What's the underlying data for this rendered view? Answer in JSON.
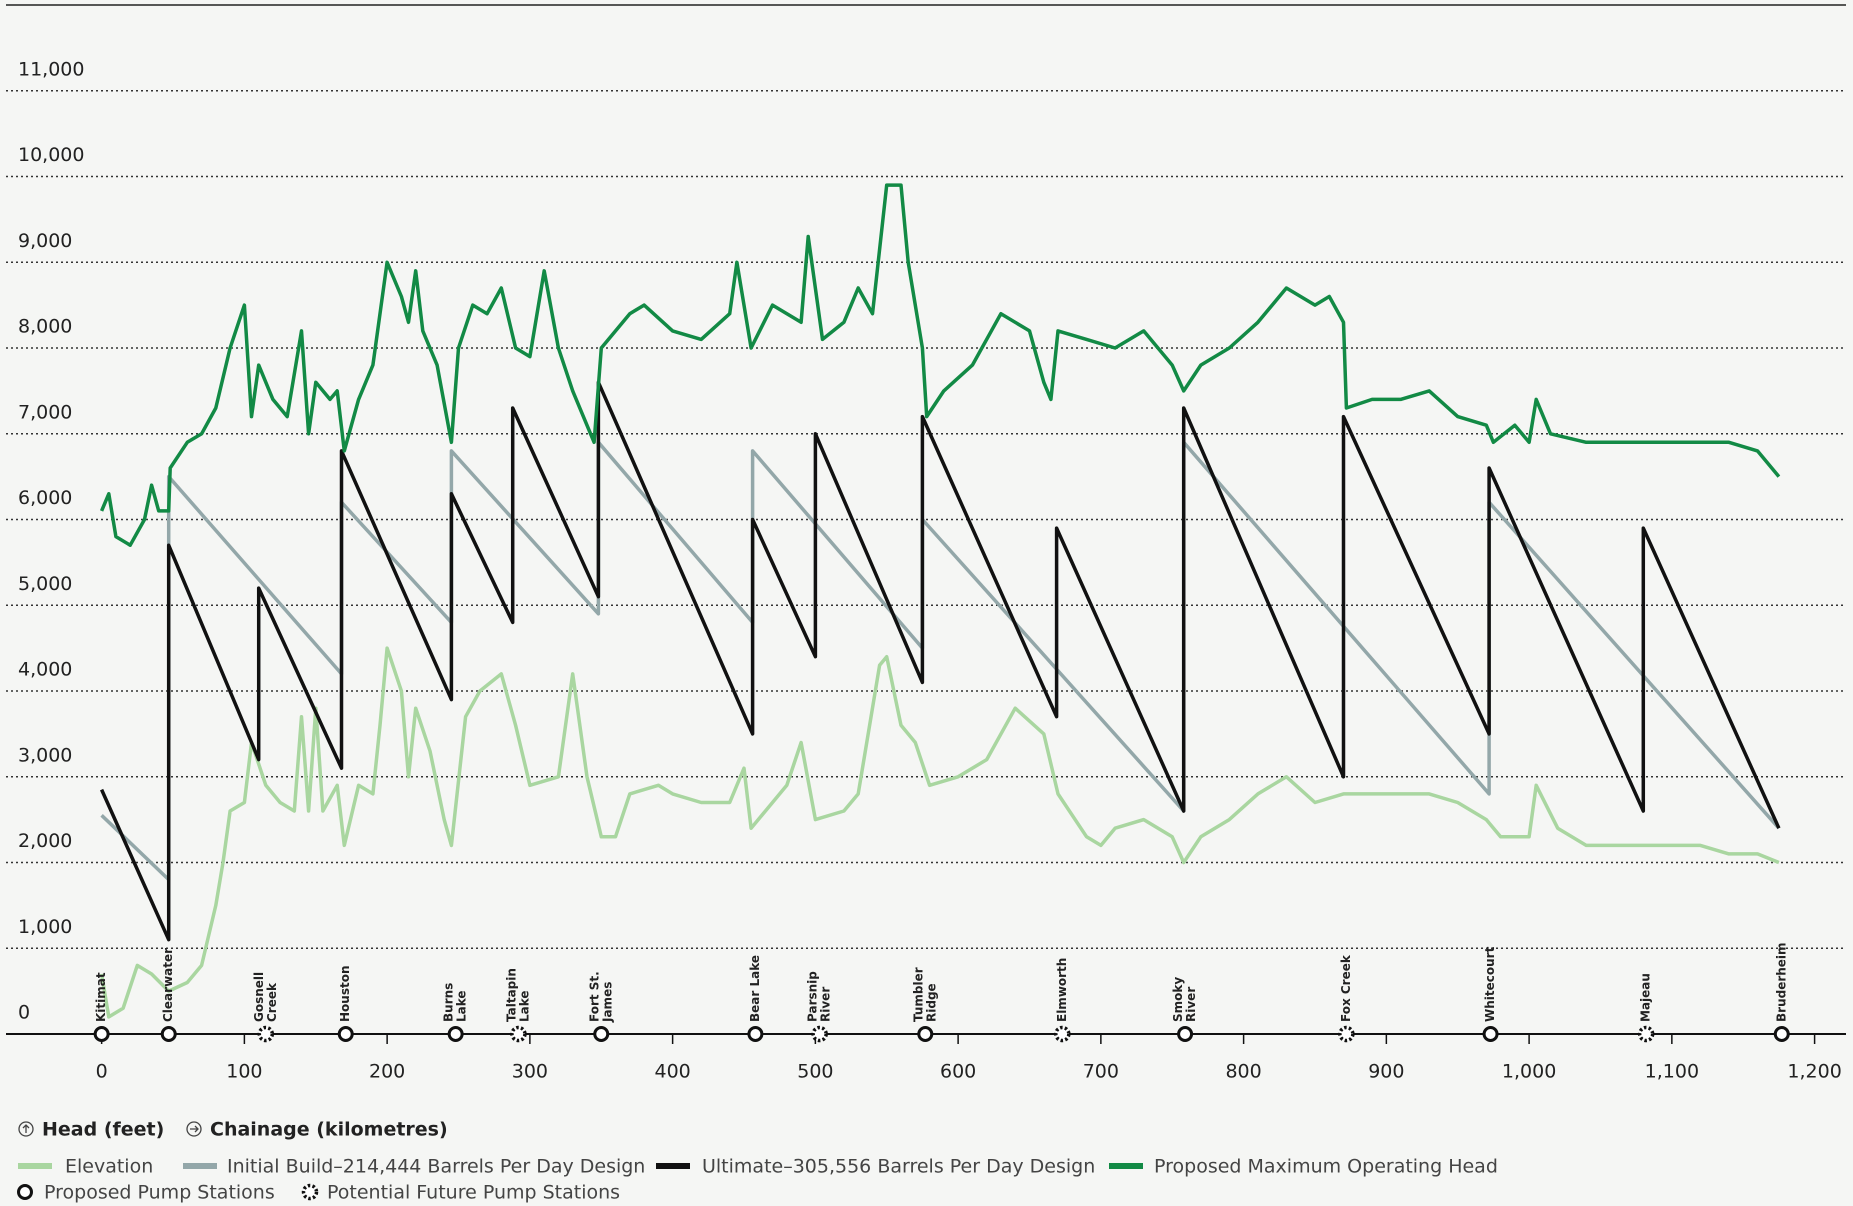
{
  "chart_data": {
    "type": "line",
    "ylabel": "Head (feet)",
    "xlabel": "Chainage (kilometres)",
    "xlim": [
      -67,
      1222
    ],
    "ylim": [
      0,
      12000
    ],
    "xticks": [
      0,
      100,
      200,
      300,
      400,
      500,
      600,
      700,
      800,
      900,
      {
        "value": 1000,
        "label": "1,000"
      },
      {
        "value": 1100,
        "label": "1,100"
      },
      {
        "value": 1200,
        "label": "1,200"
      }
    ],
    "yticks": [
      0,
      {
        "value": 1000,
        "label": "1,000"
      },
      {
        "value": 2000,
        "label": "2,000"
      },
      {
        "value": 3000,
        "label": "3,000"
      },
      {
        "value": 4000,
        "label": "4,000"
      },
      {
        "value": 5000,
        "label": "5,000"
      },
      {
        "value": 6000,
        "label": "6,000"
      },
      {
        "value": 7000,
        "label": "7,000"
      },
      {
        "value": 8000,
        "label": "8,000"
      },
      {
        "value": 9000,
        "label": "9,000"
      },
      {
        "value": 10000,
        "label": "10,000"
      },
      {
        "value": 11000,
        "label": "11,000"
      }
    ],
    "grid": true,
    "series": [
      {
        "name": "Elevation",
        "color": "#a9d6a0",
        "x": [
          0,
          5,
          15,
          25,
          35,
          47,
          60,
          70,
          80,
          85,
          90,
          100,
          105,
          115,
          125,
          135,
          140,
          145,
          150,
          155,
          165,
          170,
          180,
          190,
          195,
          200,
          210,
          215,
          220,
          230,
          240,
          245,
          255,
          265,
          280,
          290,
          300,
          320,
          330,
          340,
          350,
          360,
          370,
          390,
          400,
          420,
          440,
          450,
          455,
          470,
          480,
          490,
          500,
          520,
          530,
          545,
          550,
          560,
          570,
          580,
          600,
          620,
          640,
          660,
          670,
          690,
          700,
          710,
          730,
          750,
          758,
          770,
          790,
          810,
          830,
          850,
          870,
          890,
          910,
          930,
          950,
          970,
          980,
          1000,
          1005,
          1020,
          1040,
          1060,
          1080,
          1100,
          1120,
          1140,
          1160,
          1175
        ],
        "values": [
          700,
          200,
          300,
          800,
          700,
          500,
          600,
          800,
          1500,
          2000,
          2600,
          2700,
          3400,
          2900,
          2700,
          2600,
          3700,
          2600,
          3800,
          2600,
          2900,
          2200,
          2900,
          2800,
          3600,
          4500,
          4000,
          3000,
          3800,
          3300,
          2500,
          2200,
          3700,
          4000,
          4200,
          3600,
          2900,
          3000,
          4200,
          3000,
          2300,
          2300,
          2800,
          2900,
          2800,
          2700,
          2700,
          3100,
          2400,
          2700,
          2900,
          3400,
          2500,
          2600,
          2800,
          4300,
          4400,
          3600,
          3400,
          2900,
          3000,
          3200,
          3800,
          3500,
          2800,
          2300,
          2200,
          2400,
          2500,
          2300,
          2000,
          2300,
          2500,
          2800,
          3000,
          2700,
          2800,
          2800,
          2800,
          2800,
          2700,
          2500,
          2300,
          2300,
          2900,
          2400,
          2200,
          2200,
          2200,
          2200,
          2200,
          2100,
          2100,
          2000
        ]
      },
      {
        "name": "Initial Build–214,444 Barrels Per Day Design",
        "color": "#93a7a9",
        "x": [
          0,
          47,
          47,
          168,
          168,
          245,
          245,
          348,
          348,
          456,
          456,
          575,
          575,
          758,
          758,
          972,
          972,
          1175
        ],
        "values": [
          2550,
          1800,
          6500,
          4200,
          6200,
          4800,
          6800,
          4900,
          6900,
          4800,
          6800,
          4500,
          6000,
          2600,
          6900,
          2800,
          6200,
          2400
        ]
      },
      {
        "name": "Ultimate–305,556 Barrels Per Day Design",
        "color": "#111111",
        "x": [
          0,
          47,
          47,
          110,
          110,
          168,
          168,
          245,
          245,
          288,
          288,
          348,
          348,
          456,
          456,
          500,
          500,
          575,
          575,
          669,
          669,
          758,
          758,
          870,
          870,
          972,
          972,
          1080,
          1080,
          1175
        ],
        "values": [
          2850,
          1100,
          5700,
          3200,
          5200,
          3100,
          6800,
          3900,
          6300,
          4800,
          7300,
          5100,
          7600,
          3500,
          6000,
          4400,
          7000,
          4100,
          7200,
          3700,
          5900,
          2600,
          7300,
          3000,
          7200,
          3500,
          6600,
          2600,
          5900,
          2400
        ]
      },
      {
        "name": "Proposed Maximum Operating Head",
        "color": "#128a45",
        "x": [
          0,
          5,
          10,
          20,
          30,
          35,
          40,
          47,
          48,
          60,
          70,
          80,
          90,
          100,
          105,
          110,
          120,
          130,
          140,
          145,
          150,
          160,
          165,
          170,
          180,
          190,
          200,
          210,
          215,
          220,
          225,
          235,
          245,
          250,
          260,
          270,
          280,
          290,
          300,
          310,
          320,
          330,
          345,
          350,
          370,
          380,
          400,
          420,
          440,
          445,
          455,
          470,
          490,
          495,
          505,
          520,
          530,
          540,
          550,
          560,
          565,
          575,
          578,
          590,
          610,
          630,
          650,
          660,
          665,
          670,
          690,
          710,
          730,
          750,
          758,
          770,
          790,
          810,
          830,
          850,
          860,
          870,
          872,
          890,
          910,
          930,
          950,
          970,
          975,
          990,
          1000,
          1005,
          1015,
          1040,
          1060,
          1080,
          1100,
          1120,
          1140,
          1160,
          1175
        ],
        "values": [
          6100,
          6300,
          5800,
          5700,
          6000,
          6400,
          6100,
          6100,
          6600,
          6900,
          7000,
          7300,
          8000,
          8500,
          7200,
          7800,
          7400,
          7200,
          8200,
          7000,
          7600,
          7400,
          7500,
          6800,
          7400,
          7800,
          9000,
          8600,
          8300,
          8900,
          8200,
          7800,
          6900,
          8000,
          8500,
          8400,
          8700,
          8000,
          7900,
          8900,
          8000,
          7500,
          6900,
          8000,
          8400,
          8500,
          8200,
          8100,
          8400,
          9000,
          8000,
          8500,
          8300,
          9300,
          8100,
          8300,
          8700,
          8400,
          9900,
          9900,
          9000,
          8000,
          7200,
          7500,
          7800,
          8400,
          8200,
          7600,
          7400,
          8200,
          8100,
          8000,
          8200,
          7800,
          7500,
          7800,
          8000,
          8300,
          8700,
          8500,
          8600,
          8300,
          7300,
          7400,
          7400,
          7500,
          7200,
          7100,
          6900,
          7100,
          6900,
          7400,
          7000,
          6900,
          6900,
          6900,
          6900,
          6900,
          6900,
          6800,
          6500
        ]
      }
    ],
    "station_legend": {
      "proposed": "Proposed Pump Stations",
      "potential": "Potential Future Pump Stations"
    },
    "stations": [
      {
        "label": [
          "Kitimat"
        ],
        "x": 0,
        "kind": "proposed"
      },
      {
        "label": [
          "Clearwater"
        ],
        "x": 47,
        "kind": "proposed"
      },
      {
        "label": [
          "Gosnell",
          "Creek"
        ],
        "x": 115,
        "kind": "potential"
      },
      {
        "label": [
          "Houston"
        ],
        "x": 171,
        "kind": "proposed"
      },
      {
        "label": [
          "Burns",
          "Lake"
        ],
        "x": 248,
        "kind": "proposed"
      },
      {
        "label": [
          "Taltapin",
          "Lake"
        ],
        "x": 292,
        "kind": "potential"
      },
      {
        "label": [
          "Fort St.",
          "James"
        ],
        "x": 350,
        "kind": "proposed"
      },
      {
        "label": [
          "Bear Lake"
        ],
        "x": 458,
        "kind": "proposed"
      },
      {
        "label": [
          "Parsnip",
          "River"
        ],
        "x": 503,
        "kind": "potential"
      },
      {
        "label": [
          "Tumbler",
          "Ridge"
        ],
        "x": 577,
        "kind": "proposed"
      },
      {
        "label": [
          "Elmworth"
        ],
        "x": 673,
        "kind": "potential"
      },
      {
        "label": [
          "Smoky",
          "River"
        ],
        "x": 759,
        "kind": "proposed"
      },
      {
        "label": [
          "Fox Creek"
        ],
        "x": 872,
        "kind": "potential"
      },
      {
        "label": [
          "Whitecourt"
        ],
        "x": 973,
        "kind": "proposed"
      },
      {
        "label": [
          "Majeau"
        ],
        "x": 1082,
        "kind": "potential"
      },
      {
        "label": [
          "Bruderheim"
        ],
        "x": 1177,
        "kind": "proposed"
      }
    ]
  }
}
